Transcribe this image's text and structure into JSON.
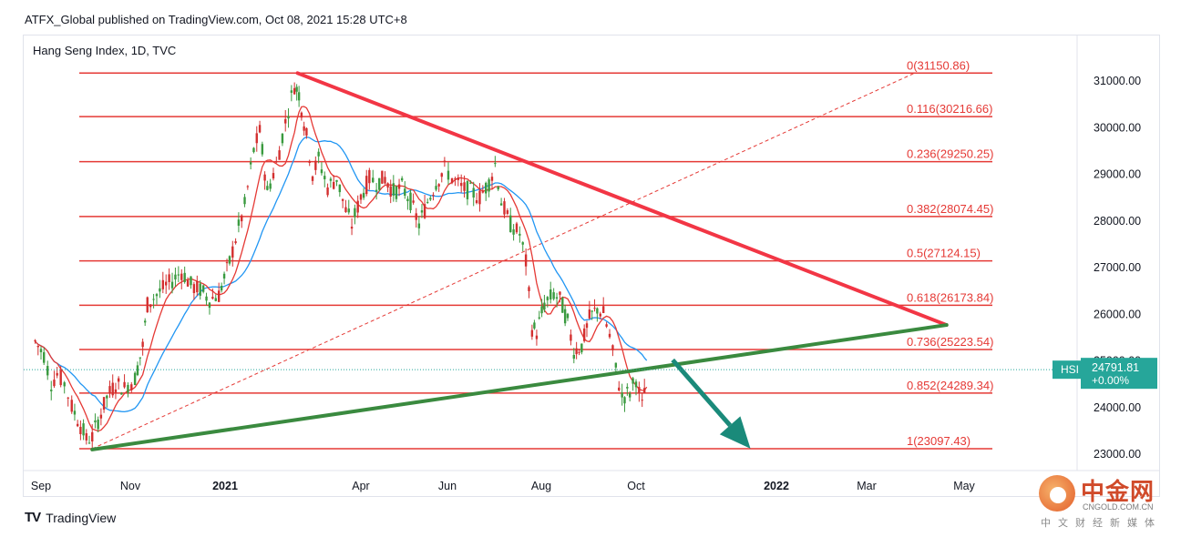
{
  "header": {
    "published": "ATFX_Global published on TradingView.com, Oct 08, 2021 15:28 UTC+8"
  },
  "symbol_line": "Hang Seng Index, 1D, TVC",
  "footer": {
    "logo_mark": "TV",
    "logo_text": "TradingView"
  },
  "watermark": {
    "name": "中金网",
    "domain": "CNGOLD.COM.CN",
    "subtitle": "中文财经新媒体"
  },
  "colors": {
    "fib": "#e53935",
    "downtrend": "#f23645",
    "uptrend": "#3a8a3f",
    "arrow": "#1a8a7a",
    "price_tag": "#26a69a",
    "ma_fast": "#e53935",
    "ma_slow": "#2196f3"
  },
  "chart_data": {
    "type": "candlestick",
    "title": "Hang Seng Index, 1D, TVC",
    "ylim": [
      22600,
      31850
    ],
    "xticks": [
      {
        "label": "Sep",
        "bold": false
      },
      {
        "label": "Nov",
        "bold": false
      },
      {
        "label": "2021",
        "bold": true
      },
      {
        "label": "Apr",
        "bold": false
      },
      {
        "label": "Jun",
        "bold": false
      },
      {
        "label": "Aug",
        "bold": false
      },
      {
        "label": "Oct",
        "bold": false
      },
      {
        "label": "2022",
        "bold": true
      },
      {
        "label": "Mar",
        "bold": false
      },
      {
        "label": "May",
        "bold": false
      }
    ],
    "yticks": [
      23000,
      24000,
      25000,
      26000,
      27000,
      28000,
      29000,
      30000,
      31000
    ],
    "ytick_labels": [
      "23000.00",
      "24000.00",
      "25000.00",
      "26000.00",
      "27000.00",
      "28000.00",
      "29000.00",
      "30000.00",
      "31000.00"
    ],
    "fib_levels": [
      {
        "label": "0(31150.86)",
        "value": 31150.86
      },
      {
        "label": "0.116(30216.66)",
        "value": 30216.66
      },
      {
        "label": "0.236(29250.25)",
        "value": 29250.25
      },
      {
        "label": "0.382(28074.45)",
        "value": 28074.45
      },
      {
        "label": "0.5(27124.15)",
        "value": 27124.15
      },
      {
        "label": "0.618(26173.84)",
        "value": 26173.84
      },
      {
        "label": "0.736(25223.54)",
        "value": 25223.54
      },
      {
        "label": "0.852(24289.34)",
        "value": 24289.34
      },
      {
        "label": "1(23097.43)",
        "value": 23097.43
      }
    ],
    "trendlines": {
      "downtrend": {
        "from": [
          "2021-02-18",
          31150
        ],
        "to": [
          "2022-04-20",
          25750
        ]
      },
      "uptrend": {
        "from": [
          "2020-10-06",
          23080
        ],
        "to": [
          "2022-04-20",
          25750
        ]
      },
      "fib_diagonal": {
        "from": [
          "2020-10-06",
          23097
        ],
        "to": [
          "2022-03-31",
          31150
        ]
      },
      "arrow": {
        "from": [
          "2021-10-25",
          25000
        ],
        "to": [
          "2021-12-15",
          23100
        ]
      }
    },
    "last_price": {
      "symbol": "HSI",
      "value": "24791.81",
      "change": "+0.00%",
      "y": 24791.81
    },
    "close_series": [
      {
        "d": "2020-08-28",
        "c": 25400
      },
      {
        "d": "2020-09-03",
        "c": 25100
      },
      {
        "d": "2020-09-08",
        "c": 24500
      },
      {
        "d": "2020-09-12",
        "c": 24700
      },
      {
        "d": "2020-09-17",
        "c": 24500
      },
      {
        "d": "2020-09-22",
        "c": 24000
      },
      {
        "d": "2020-09-28",
        "c": 23600
      },
      {
        "d": "2020-10-02",
        "c": 23300
      },
      {
        "d": "2020-10-06",
        "c": 23350
      },
      {
        "d": "2020-10-10",
        "c": 23700
      },
      {
        "d": "2020-10-16",
        "c": 24200
      },
      {
        "d": "2020-10-22",
        "c": 24500
      },
      {
        "d": "2020-10-28",
        "c": 24400
      },
      {
        "d": "2020-11-04",
        "c": 24600
      },
      {
        "d": "2020-11-09",
        "c": 25300
      },
      {
        "d": "2020-11-12",
        "c": 26200
      },
      {
        "d": "2020-11-18",
        "c": 26400
      },
      {
        "d": "2020-11-24",
        "c": 26600
      },
      {
        "d": "2020-11-28",
        "c": 26700
      },
      {
        "d": "2020-12-04",
        "c": 26900
      },
      {
        "d": "2020-12-10",
        "c": 26600
      },
      {
        "d": "2020-12-16",
        "c": 26500
      },
      {
        "d": "2020-12-22",
        "c": 26300
      },
      {
        "d": "2020-12-28",
        "c": 26400
      },
      {
        "d": "2021-01-04",
        "c": 27100
      },
      {
        "d": "2021-01-08",
        "c": 27600
      },
      {
        "d": "2021-01-14",
        "c": 28300
      },
      {
        "d": "2021-01-20",
        "c": 29500
      },
      {
        "d": "2021-01-24",
        "c": 29900
      },
      {
        "d": "2021-01-29",
        "c": 28600
      },
      {
        "d": "2021-02-04",
        "c": 29200
      },
      {
        "d": "2021-02-10",
        "c": 30100
      },
      {
        "d": "2021-02-16",
        "c": 30900
      },
      {
        "d": "2021-02-19",
        "c": 30700
      },
      {
        "d": "2021-02-24",
        "c": 29800
      },
      {
        "d": "2021-02-28",
        "c": 29000
      },
      {
        "d": "2021-03-04",
        "c": 29300
      },
      {
        "d": "2021-03-10",
        "c": 28700
      },
      {
        "d": "2021-03-16",
        "c": 28900
      },
      {
        "d": "2021-03-22",
        "c": 28200
      },
      {
        "d": "2021-03-26",
        "c": 27900
      },
      {
        "d": "2021-04-01",
        "c": 28500
      },
      {
        "d": "2021-04-07",
        "c": 28900
      },
      {
        "d": "2021-04-12",
        "c": 28800
      },
      {
        "d": "2021-04-18",
        "c": 28900
      },
      {
        "d": "2021-04-24",
        "c": 28600
      },
      {
        "d": "2021-04-30",
        "c": 28700
      },
      {
        "d": "2021-05-06",
        "c": 28400
      },
      {
        "d": "2021-05-12",
        "c": 27900
      },
      {
        "d": "2021-05-18",
        "c": 28400
      },
      {
        "d": "2021-05-24",
        "c": 28800
      },
      {
        "d": "2021-05-30",
        "c": 29100
      },
      {
        "d": "2021-06-04",
        "c": 28900
      },
      {
        "d": "2021-06-10",
        "c": 28700
      },
      {
        "d": "2021-06-16",
        "c": 28600
      },
      {
        "d": "2021-06-22",
        "c": 28500
      },
      {
        "d": "2021-06-28",
        "c": 28800
      },
      {
        "d": "2021-07-02",
        "c": 29200
      },
      {
        "d": "2021-07-06",
        "c": 28400
      },
      {
        "d": "2021-07-12",
        "c": 27900
      },
      {
        "d": "2021-07-18",
        "c": 27700
      },
      {
        "d": "2021-07-22",
        "c": 27100
      },
      {
        "d": "2021-07-26",
        "c": 25700
      },
      {
        "d": "2021-07-29",
        "c": 25600
      },
      {
        "d": "2021-08-03",
        "c": 26200
      },
      {
        "d": "2021-08-09",
        "c": 26400
      },
      {
        "d": "2021-08-13",
        "c": 26300
      },
      {
        "d": "2021-08-18",
        "c": 25800
      },
      {
        "d": "2021-08-22",
        "c": 25200
      },
      {
        "d": "2021-08-27",
        "c": 25300
      },
      {
        "d": "2021-09-01",
        "c": 25900
      },
      {
        "d": "2021-09-06",
        "c": 26100
      },
      {
        "d": "2021-09-10",
        "c": 26000
      },
      {
        "d": "2021-09-14",
        "c": 25500
      },
      {
        "d": "2021-09-18",
        "c": 24800
      },
      {
        "d": "2021-09-22",
        "c": 24200
      },
      {
        "d": "2021-09-27",
        "c": 24300
      },
      {
        "d": "2021-10-01",
        "c": 24600
      },
      {
        "d": "2021-10-05",
        "c": 24000
      },
      {
        "d": "2021-10-08",
        "c": 24791.81
      }
    ]
  }
}
